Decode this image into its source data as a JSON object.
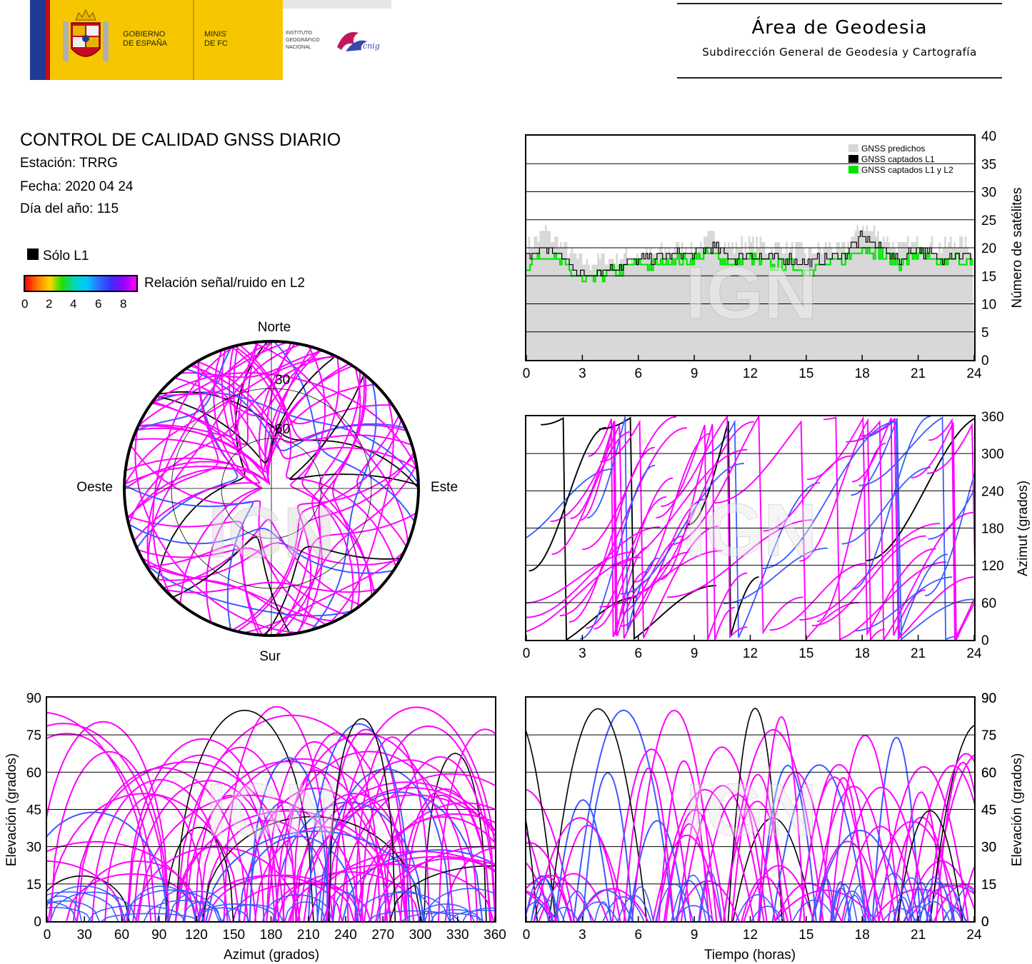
{
  "header": {
    "gov_line1": "GOBIERNO",
    "gov_line2": "DE ESPAÑA",
    "min_line1": "MINISTERIO",
    "min_line2": "DE FOMENTO",
    "ign_line1": "INSTITUTO",
    "ign_line2": "GEOGRÁFICO",
    "ign_line3": "NACIONAL",
    "cnig": "cnig",
    "area_title": "Área de Geodesia",
    "area_subtitle": "Subdirección General de Geodesia y Cartografía"
  },
  "report": {
    "title": "CONTROL DE CALIDAD GNSS DIARIO",
    "station": "Estación: TRRG",
    "date": "Fecha: 2020 04 24",
    "doy": "Día del año: 115",
    "legend_l1": "Sólo L1",
    "legend_snr": "Relación señal/ruido en L2",
    "snr_ticks": [
      "0",
      "2",
      "4",
      "6",
      "8"
    ],
    "watermark": "IGN"
  },
  "colors": {
    "l2_high": "#ff00ff",
    "l2_mid": "#3b5bff",
    "l2_low": "#00c8ff",
    "l1_only": "#000000",
    "predicted": "#d8d8d8",
    "captured_l1l2": "#00e600"
  },
  "chart_data": [
    {
      "type": "polar",
      "id": "skyplot",
      "labels": {
        "north": "Norte",
        "south": "Sur",
        "east": "Este",
        "west": "Oeste"
      },
      "rings": [
        "30",
        "60"
      ]
    },
    {
      "type": "area",
      "id": "satellites",
      "ylabel": "Número de satélites",
      "xlim": [
        0,
        24
      ],
      "ylim": [
        0,
        40
      ],
      "xticks": [
        "0",
        "3",
        "6",
        "9",
        "12",
        "15",
        "18",
        "21",
        "24"
      ],
      "yticks": [
        "0",
        "5",
        "10",
        "15",
        "20",
        "25",
        "30",
        "35",
        "40"
      ],
      "legend": [
        "GNSS predichos",
        "GNSS captados L1",
        "GNSS captados L1 y L2"
      ],
      "x": [
        0,
        1,
        2,
        3,
        4,
        5,
        6,
        7,
        8,
        9,
        10,
        11,
        12,
        13,
        14,
        15,
        16,
        17,
        18,
        19,
        20,
        21,
        22,
        23,
        24
      ],
      "series": [
        {
          "name": "GNSS predichos",
          "values": [
            20,
            23,
            20,
            17,
            18,
            18,
            19,
            19,
            20,
            20,
            22,
            20,
            21,
            20,
            20,
            19,
            20,
            20,
            24,
            22,
            20,
            21,
            20,
            21,
            20
          ]
        },
        {
          "name": "GNSS captados L1",
          "values": [
            18,
            20,
            18,
            15,
            16,
            17,
            18,
            18,
            19,
            19,
            20,
            18,
            19,
            18,
            18,
            17,
            18,
            19,
            22,
            20,
            18,
            20,
            18,
            19,
            18
          ]
        },
        {
          "name": "GNSS captados L1 y L2",
          "values": [
            17,
            19,
            17,
            14,
            15,
            16,
            17,
            17,
            18,
            18,
            19,
            17,
            18,
            17,
            17,
            16,
            17,
            18,
            20,
            19,
            17,
            19,
            17,
            18,
            17
          ]
        }
      ]
    },
    {
      "type": "scatter",
      "id": "azimuth-time",
      "ylabel": "Azimut (grados)",
      "xlim": [
        0,
        24
      ],
      "ylim": [
        0,
        360
      ],
      "xticks": [
        "0",
        "3",
        "6",
        "9",
        "12",
        "15",
        "18",
        "21",
        "24"
      ],
      "yticks": [
        "0",
        "60",
        "120",
        "180",
        "240",
        "300",
        "360"
      ]
    },
    {
      "type": "scatter",
      "id": "elevation-azimuth",
      "xlabel": "Azimut (grados)",
      "ylabel": "Elevación (grados)",
      "xlim": [
        0,
        360
      ],
      "ylim": [
        0,
        90
      ],
      "xticks": [
        "0",
        "30",
        "60",
        "90",
        "120",
        "150",
        "180",
        "210",
        "240",
        "270",
        "300",
        "330",
        "360"
      ],
      "yticks": [
        "0",
        "15",
        "30",
        "45",
        "60",
        "75",
        "90"
      ]
    },
    {
      "type": "scatter",
      "id": "elevation-time",
      "xlabel": "Tiempo (horas)",
      "ylabel": "Elevación (grados)",
      "xlim": [
        0,
        24
      ],
      "ylim": [
        0,
        90
      ],
      "xticks": [
        "0",
        "3",
        "6",
        "9",
        "12",
        "15",
        "18",
        "21",
        "24"
      ],
      "yticks": [
        "0",
        "15",
        "30",
        "45",
        "60",
        "75",
        "90"
      ]
    }
  ]
}
